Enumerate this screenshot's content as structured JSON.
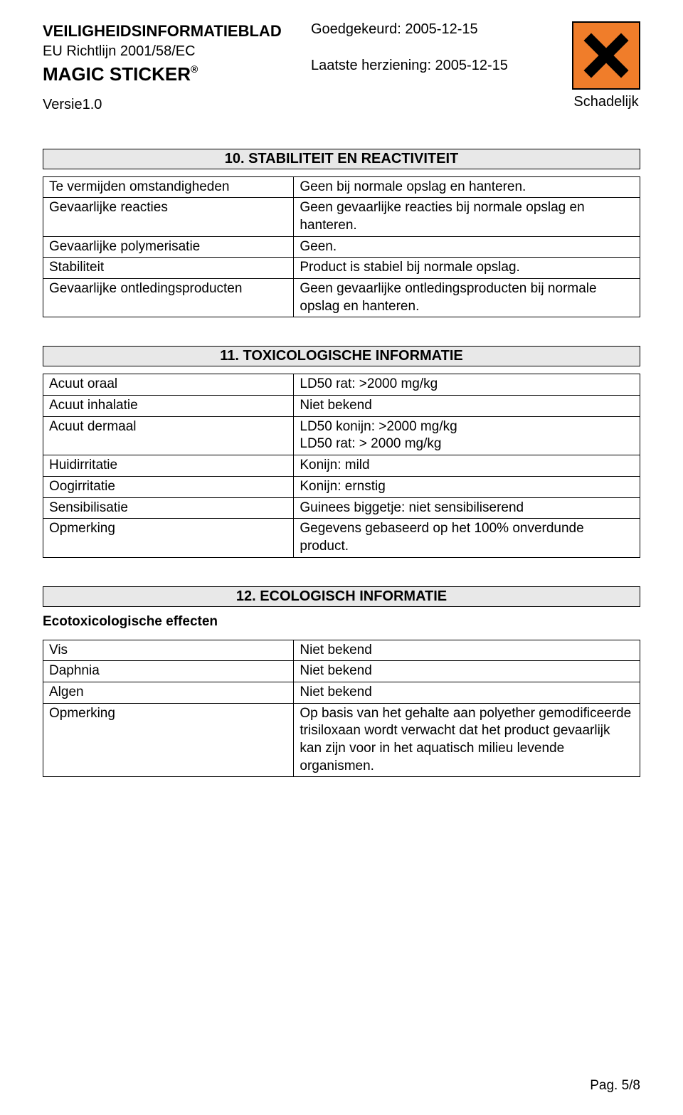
{
  "header": {
    "doc_title": "VEILIGHEIDSINFORMATIEBLAD",
    "doc_subtitle": "EU Richtlijn 2001/58/EC",
    "product_name": "MAGIC STICKER",
    "version": "Versie1.0",
    "approved": "Goedgekeurd: 2005-12-15",
    "revised": "Laatste herziening: 2005-12-15",
    "hazard_label": "Schadelijk",
    "hazard_bg": "#f07d2a"
  },
  "sections": {
    "s10": {
      "heading": "10. STABILITEIT EN REACTIVITEIT",
      "rows": [
        {
          "label": "Te vermijden omstandigheden",
          "value": "Geen bij normale opslag en hanteren."
        },
        {
          "label": "Gevaarlijke reacties",
          "value": "Geen gevaarlijke reacties bij normale opslag en hanteren."
        },
        {
          "label": "Gevaarlijke polymerisatie",
          "value": "Geen."
        },
        {
          "label": "Stabiliteit",
          "value": "Product is stabiel bij normale opslag."
        },
        {
          "label": "Gevaarlijke ontledingsproducten",
          "value": "Geen gevaarlijke ontledingsproducten bij normale opslag en hanteren."
        }
      ]
    },
    "s11": {
      "heading": "11. TOXICOLOGISCHE INFORMATIE",
      "rows": [
        {
          "label": "Acuut oraal",
          "value": "LD50 rat: >2000 mg/kg"
        },
        {
          "label": "Acuut inhalatie",
          "value": "Niet bekend"
        },
        {
          "label": "Acuut dermaal",
          "value": "LD50 konijn: >2000 mg/kg\nLD50 rat: > 2000 mg/kg"
        },
        {
          "label": "Huidirritatie",
          "value": "Konijn: mild"
        },
        {
          "label": "Oogirritatie",
          "value": "Konijn: ernstig"
        },
        {
          "label": "Sensibilisatie",
          "value": "Guinees biggetje: niet sensibiliserend"
        },
        {
          "label": "Opmerking",
          "value": "Gegevens gebaseerd op het 100% onverdunde product."
        }
      ]
    },
    "s12": {
      "heading": "12. ECOLOGISCH INFORMATIE",
      "subtitle": "Ecotoxicologische effecten",
      "rows": [
        {
          "label": "Vis",
          "value": "Niet bekend"
        },
        {
          "label": "Daphnia",
          "value": "Niet bekend"
        },
        {
          "label": "Algen",
          "value": "Niet bekend"
        },
        {
          "label": "Opmerking",
          "value": "Op basis van het gehalte aan polyether gemodificeerde trisiloxaan wordt verwacht dat het product gevaarlijk kan zijn voor in het aquatisch milieu levende organismen."
        }
      ]
    }
  },
  "footer": {
    "page": "Pag. 5/8"
  }
}
